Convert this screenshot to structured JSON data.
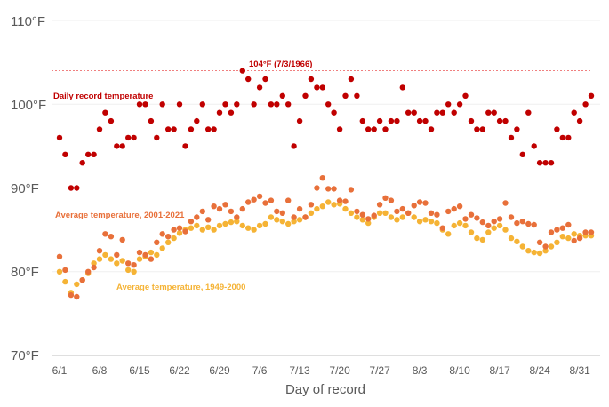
{
  "chart_data": {
    "type": "scatter",
    "title": "",
    "xlabel": "Day of record",
    "ylabel": "",
    "ylim": [
      70,
      110
    ],
    "yticks": [
      70,
      80,
      90,
      100,
      110
    ],
    "ytick_labels": [
      "70°F",
      "80°F",
      "90°F",
      "100°F",
      "110°F"
    ],
    "xtick_labels": [
      "6/1",
      "6/8",
      "6/15",
      "6/22",
      "6/29",
      "7/6",
      "7/13",
      "7/20",
      "7/27",
      "8/3",
      "8/10",
      "8/17",
      "8/24",
      "8/31"
    ],
    "reference_line": {
      "value": 104,
      "label": "104°F (7/3/1966)",
      "color": "#f08080"
    },
    "colors": {
      "record": "#c00000",
      "avg_2001_2021": "#e8703a",
      "avg_1949_2000": "#f5b335"
    },
    "series": [
      {
        "name": "Daily record temperature",
        "color": "#c00000",
        "values": [
          96,
          94,
          90,
          90,
          93,
          94,
          94,
          97,
          99,
          98,
          95,
          95,
          96,
          96,
          100,
          100,
          98,
          96,
          100,
          97,
          97,
          100,
          95,
          97,
          98,
          100,
          97,
          97,
          99,
          100,
          99,
          100,
          104,
          103,
          100,
          102,
          103,
          100,
          100,
          101,
          100,
          95,
          98,
          101,
          103,
          102,
          102,
          100,
          99,
          97,
          101,
          103,
          101,
          98,
          97,
          97,
          98,
          97,
          98,
          98,
          102,
          99,
          99,
          98,
          98,
          97,
          99,
          99,
          100,
          99,
          100,
          101,
          98,
          97,
          97,
          99,
          99,
          98,
          98,
          96,
          97,
          94,
          99,
          95,
          93,
          93,
          93,
          97,
          96,
          96,
          99,
          98,
          100,
          101
        ]
      },
      {
        "name": "Average temperature, 2001-2021",
        "color": "#e8703a",
        "values": [
          81.8,
          80.2,
          77.2,
          77.0,
          79.0,
          80.0,
          80.5,
          82.5,
          84.5,
          84.2,
          82.0,
          83.8,
          81.0,
          80.8,
          82.3,
          82.0,
          81.5,
          83.5,
          84.5,
          84.2,
          85.0,
          85.2,
          84.8,
          86.0,
          86.5,
          87.2,
          86.2,
          87.8,
          87.5,
          88.0,
          87.2,
          86.5,
          87.5,
          88.3,
          88.6,
          89.0,
          88.2,
          88.5,
          87.2,
          87.0,
          88.5,
          86.5,
          87.5,
          86.5,
          88.0,
          90.0,
          91.2,
          89.9,
          89.9,
          88.5,
          88.4,
          89.8,
          87.2,
          86.8,
          86.3,
          86.7,
          88.0,
          88.8,
          88.5,
          87.2,
          87.5,
          87.0,
          87.9,
          88.3,
          88.2,
          87.0,
          86.8,
          85.2,
          87.2,
          87.5,
          87.8,
          86.3,
          86.8,
          86.4,
          85.9,
          85.5,
          86.0,
          86.3,
          88.2,
          86.5,
          85.8,
          86.0,
          85.7,
          85.6,
          83.5,
          83.0,
          84.7,
          85.0,
          85.2,
          85.6,
          83.7,
          84.0,
          84.7,
          84.7
        ]
      },
      {
        "name": "Average temperature, 1949-2000",
        "color": "#f5b335",
        "values": [
          80.0,
          78.8,
          77.5,
          78.5,
          79.0,
          79.8,
          81.0,
          81.5,
          82.0,
          81.5,
          81.0,
          81.3,
          80.2,
          80.0,
          81.5,
          81.8,
          82.3,
          82.0,
          82.8,
          83.5,
          84.0,
          84.6,
          85.0,
          85.2,
          85.5,
          85.0,
          85.3,
          85.0,
          85.5,
          85.7,
          85.9,
          86.0,
          85.5,
          85.2,
          85.0,
          85.5,
          85.7,
          86.5,
          86.2,
          86.0,
          85.7,
          86.0,
          86.2,
          86.5,
          87.0,
          87.5,
          87.8,
          88.3,
          88.0,
          88.1,
          87.5,
          87.0,
          86.5,
          86.2,
          85.8,
          86.5,
          87.0,
          87.0,
          86.5,
          86.2,
          86.5,
          87.0,
          86.5,
          86.0,
          86.2,
          86.0,
          85.8,
          85.0,
          84.5,
          85.5,
          85.8,
          85.5,
          84.7,
          84.0,
          83.8,
          84.7,
          85.2,
          85.5,
          85.0,
          84.0,
          83.6,
          83.0,
          82.5,
          82.3,
          82.2,
          82.5,
          83.0,
          83.5,
          84.2,
          84.0,
          84.5,
          84.3,
          84.3,
          84.3
        ]
      }
    ],
    "annotations": [
      {
        "text": "Daily record temperature",
        "color": "#c00000"
      },
      {
        "text": "Average temperature, 2001-2021",
        "color": "#e8703a"
      },
      {
        "text": "Average temperature, 1949-2000",
        "color": "#f5b335"
      }
    ]
  }
}
